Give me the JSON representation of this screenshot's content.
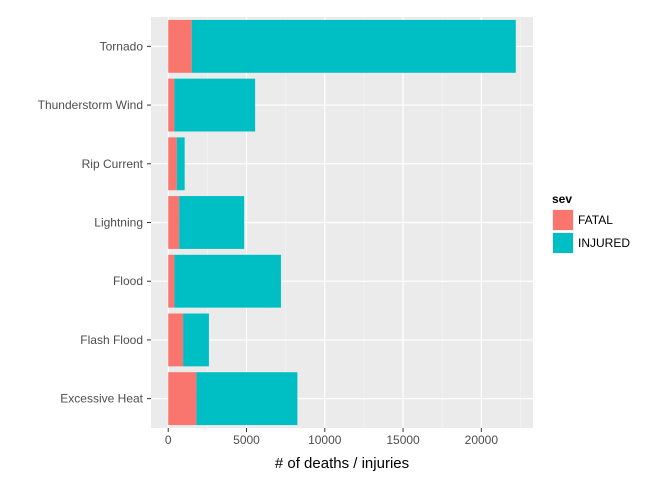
{
  "chart_data": {
    "type": "bar",
    "orientation": "horizontal",
    "stacked": true,
    "categories": [
      "Tornado",
      "Thunderstorm Wind",
      "Rip Current",
      "Lightning",
      "Flood",
      "Flash Flood",
      "Excessive Heat"
    ],
    "series": [
      {
        "name": "FATAL",
        "color": "#F8766D",
        "values": [
          1500,
          400,
          550,
          700,
          400,
          950,
          1800
        ]
      },
      {
        "name": "INJURED",
        "color": "#00BFC4",
        "values": [
          20700,
          5150,
          500,
          4150,
          6800,
          1650,
          6450
        ]
      }
    ],
    "xlabel": "# of deaths / injuries",
    "ylabel": "",
    "xlim": [
      -1100,
      23300
    ],
    "xticks": [
      0,
      5000,
      10000,
      15000,
      20000
    ],
    "grid": true,
    "legend": {
      "title": "sev",
      "position": "right"
    },
    "panel_color": "#EBEBEB"
  }
}
